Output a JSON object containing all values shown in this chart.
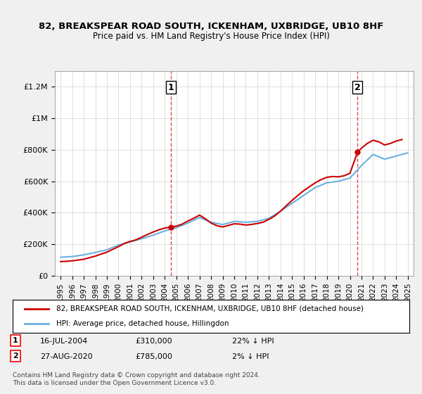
{
  "title": "82, BREAKSPEAR ROAD SOUTH, ICKENHAM, UXBRIDGE, UB10 8HF",
  "subtitle": "Price paid vs. HM Land Registry's House Price Index (HPI)",
  "sale1_date": "16-JUL-2004",
  "sale1_price": 310000,
  "sale1_hpi_pct": "22% ↓ HPI",
  "sale2_date": "27-AUG-2020",
  "sale2_price": 785000,
  "sale2_hpi_pct": "2% ↓ HPI",
  "legend_label1": "82, BREAKSPEAR ROAD SOUTH, ICKENHAM, UXBRIDGE, UB10 8HF (detached house)",
  "legend_label2": "HPI: Average price, detached house, Hillingdon",
  "copyright_text": "Contains HM Land Registry data © Crown copyright and database right 2024.\nThis data is licensed under the Open Government Licence v3.0.",
  "hpi_color": "#6ab0e0",
  "price_color": "#cc0000",
  "vline_color": "#cc0000",
  "background_color": "#f0f0f0",
  "plot_bg_color": "#ffffff",
  "ylim_min": 0,
  "ylim_max": 1300000,
  "yticks": [
    0,
    200000,
    400000,
    600000,
    800000,
    1000000,
    1200000
  ],
  "ytick_labels": [
    "£0",
    "£200K",
    "£400K",
    "£600K",
    "£800K",
    "£1M",
    "£1.2M"
  ],
  "sale1_x": 2004.54,
  "sale2_x": 2020.66,
  "hpi_years": [
    1995,
    1996,
    1997,
    1998,
    1999,
    2000,
    2001,
    2002,
    2003,
    2004,
    2005,
    2006,
    2007,
    2008,
    2009,
    2010,
    2011,
    2012,
    2013,
    2014,
    2015,
    2016,
    2017,
    2018,
    2019,
    2020,
    2021,
    2022,
    2023,
    2024,
    2025
  ],
  "hpi_values": [
    118000,
    122000,
    133000,
    148000,
    165000,
    195000,
    215000,
    235000,
    258000,
    285000,
    305000,
    335000,
    370000,
    340000,
    325000,
    345000,
    340000,
    345000,
    365000,
    410000,
    460000,
    510000,
    560000,
    590000,
    600000,
    620000,
    700000,
    770000,
    740000,
    760000,
    780000
  ],
  "price_paid_years": [
    1995.0,
    1995.5,
    1996.0,
    1996.5,
    1997.0,
    1997.5,
    1998.0,
    1998.5,
    1999.0,
    1999.5,
    2000.0,
    2000.5,
    2001.0,
    2001.5,
    2002.0,
    2002.5,
    2003.0,
    2003.5,
    2004.0,
    2004.54,
    2005.0,
    2005.5,
    2006.0,
    2006.5,
    2007.0,
    2007.5,
    2008.0,
    2008.5,
    2009.0,
    2009.5,
    2010.0,
    2010.5,
    2011.0,
    2011.5,
    2012.0,
    2012.5,
    2013.0,
    2013.5,
    2014.0,
    2014.5,
    2015.0,
    2015.5,
    2016.0,
    2016.5,
    2017.0,
    2017.5,
    2018.0,
    2018.5,
    2019.0,
    2019.5,
    2020.0,
    2020.66,
    2021.0,
    2021.5,
    2022.0,
    2022.5,
    2023.0,
    2023.5,
    2024.0,
    2024.5
  ],
  "price_paid_values": [
    90000,
    92000,
    95000,
    100000,
    105000,
    115000,
    125000,
    138000,
    150000,
    168000,
    185000,
    205000,
    218000,
    228000,
    245000,
    262000,
    278000,
    292000,
    303000,
    310000,
    315000,
    328000,
    348000,
    365000,
    385000,
    362000,
    335000,
    318000,
    310000,
    320000,
    330000,
    328000,
    322000,
    326000,
    332000,
    340000,
    358000,
    380000,
    410000,
    445000,
    478000,
    510000,
    540000,
    565000,
    590000,
    610000,
    625000,
    630000,
    628000,
    635000,
    650000,
    785000,
    810000,
    840000,
    860000,
    850000,
    830000,
    840000,
    855000,
    865000
  ],
  "xlim_min": 1994.5,
  "xlim_max": 2025.5,
  "xtick_years": [
    1995,
    1996,
    1997,
    1998,
    1999,
    2000,
    2001,
    2002,
    2003,
    2004,
    2005,
    2006,
    2007,
    2008,
    2009,
    2010,
    2011,
    2012,
    2013,
    2014,
    2015,
    2016,
    2017,
    2018,
    2019,
    2020,
    2021,
    2022,
    2023,
    2024,
    2025
  ]
}
